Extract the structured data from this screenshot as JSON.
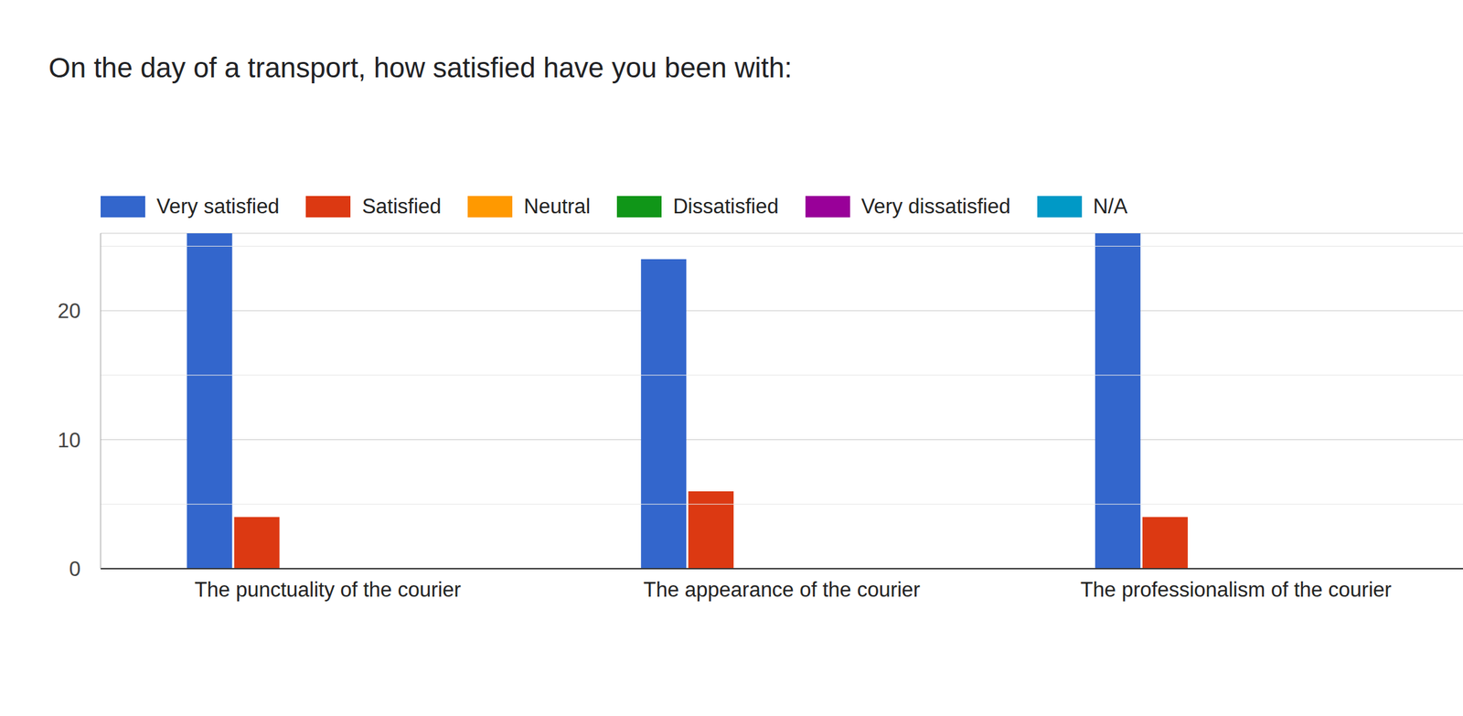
{
  "chart_data": {
    "type": "bar",
    "title": "On the day of a transport, how satisfied have you been with:",
    "categories": [
      "The punctuality of the courier",
      "The appearance of the courier",
      "The professionalism of the courier"
    ],
    "series": [
      {
        "name": "Very satisfied",
        "color": "#3366cc",
        "values": [
          26,
          24,
          26
        ]
      },
      {
        "name": "Satisfied",
        "color": "#dc3912",
        "values": [
          4,
          6,
          4
        ]
      },
      {
        "name": "Neutral",
        "color": "#ff9900",
        "values": [
          0,
          0,
          0
        ]
      },
      {
        "name": "Dissatisfied",
        "color": "#109618",
        "values": [
          0,
          0,
          0
        ]
      },
      {
        "name": "Very dissatisfied",
        "color": "#990099",
        "values": [
          0,
          0,
          0
        ]
      },
      {
        "name": "N/A",
        "color": "#0099c6",
        "values": [
          0,
          0,
          0
        ]
      }
    ],
    "ylim": [
      0,
      26
    ],
    "yticks": [
      0,
      10,
      20
    ],
    "grid": true,
    "legend": "top"
  }
}
